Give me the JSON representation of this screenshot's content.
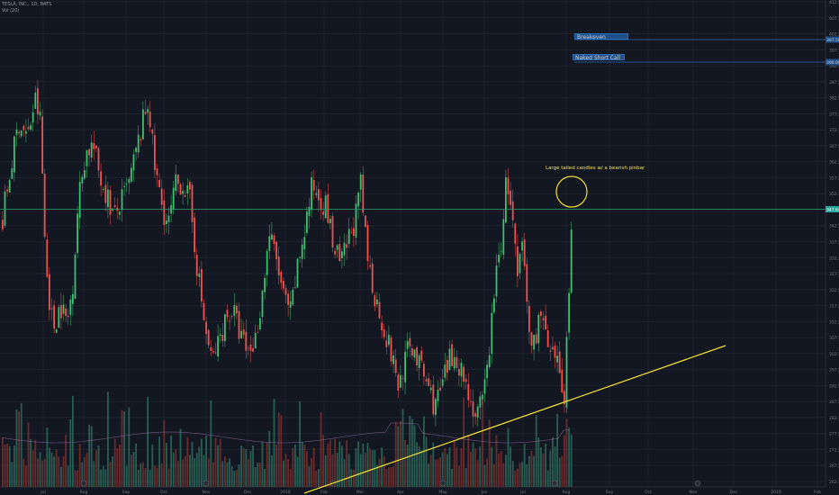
{
  "header": {
    "symbol_line": "TESLA, INC., 1D, BATS",
    "volume_line": "Vol (20)"
  },
  "colors": {
    "background": "#131722",
    "grid": "#1e222d",
    "up": "#26a69a",
    "up_candle": "#3fbf6f",
    "down": "#ef5350",
    "vol_up": "#2b6b59",
    "vol_down": "#7a2f2e",
    "trendline": "#f2e033",
    "current_price_line": "#2e9e6b",
    "annotation_box": "#1f4f8a"
  },
  "annotations": {
    "breakeven": "Breakeven",
    "naked_short_call": "Naked Short Call",
    "candle_note": "Large tailed candles w/ a bearish pinbar"
  },
  "chart_data": {
    "type": "candlestick",
    "x_tick_labels": [
      "Jul",
      "Aug",
      "Sep",
      "Oct",
      "Nov",
      "Dec",
      "2018",
      "Feb",
      "Mar",
      "Apr",
      "May",
      "Jun",
      "Jul",
      "Aug",
      "Sep",
      "Oct",
      "Nov",
      "Dec",
      "2019",
      "Feb"
    ],
    "y_tick_labels": [
      "412.50",
      "407.50",
      "402.50",
      "397.50",
      "392.50",
      "387.50",
      "382.50",
      "377.50",
      "372.50",
      "367.50",
      "362.50",
      "357.50",
      "352.50",
      "347.50",
      "342.50",
      "337.50",
      "332.50",
      "327.50",
      "322.50",
      "317.50",
      "312.50",
      "307.50",
      "302.50",
      "297.50",
      "292.50",
      "287.50",
      "282.50",
      "277.50",
      "272.50",
      "267.50",
      "262.50"
    ],
    "ylim": [
      262.5,
      412.5
    ],
    "price_tags": {
      "current": "347.64",
      "breakeven": "397.50",
      "short_call": "390.00"
    },
    "price_levels": {
      "current": 347.64,
      "breakeven": 397.5,
      "short_call": 390.0
    },
    "trendline": {
      "start": {
        "date": "2018-02",
        "price": 262.5
      },
      "end": {
        "date": "2018-11",
        "price": 305.0
      }
    },
    "circle_highlight": {
      "date": "2018-08",
      "price": 350.0
    },
    "series": [
      {
        "name": "Price",
        "kind": "ohlc",
        "note": "daily TSLA candles Jul 2017 – Aug 2018"
      },
      {
        "name": "Vol (20)",
        "kind": "volume"
      }
    ]
  }
}
